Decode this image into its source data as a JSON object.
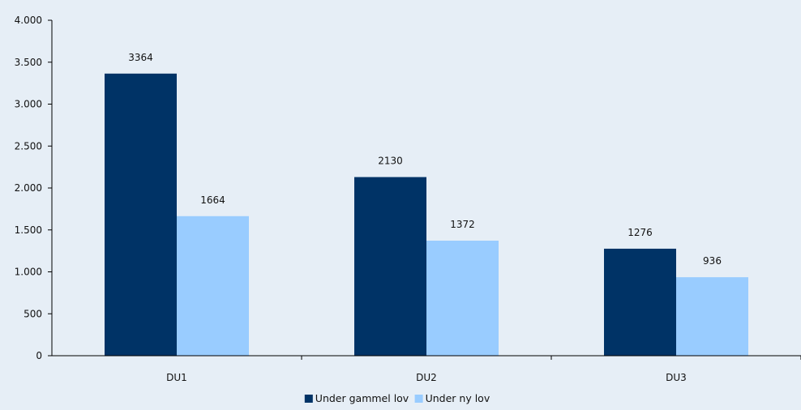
{
  "chart_data": {
    "type": "bar",
    "title": "",
    "xlabel": "",
    "ylabel": "",
    "categories": [
      "DU1",
      "DU2",
      "DU3"
    ],
    "series": [
      {
        "name": "Under gammel lov",
        "values": [
          3364,
          2130,
          1276
        ],
        "color": "#003366"
      },
      {
        "name": "Under ny lov",
        "values": [
          1664,
          1372,
          936
        ],
        "color": "#99ccff"
      }
    ],
    "ylim": [
      0,
      4000
    ],
    "yticks": [
      {
        "value": 0,
        "label": "0"
      },
      {
        "value": 500,
        "label": "500"
      },
      {
        "value": 1000,
        "label": "1.000"
      },
      {
        "value": 1500,
        "label": "1.500"
      },
      {
        "value": 2000,
        "label": "2.000"
      },
      {
        "value": 2500,
        "label": "2.500"
      },
      {
        "value": 3000,
        "label": "3.000"
      },
      {
        "value": 3500,
        "label": "3.500"
      },
      {
        "value": 4000,
        "label": "4.000"
      }
    ],
    "data_labels": [
      [
        "3364",
        "2130",
        "1276"
      ],
      [
        "1664",
        "1372",
        "936"
      ]
    ],
    "grid": false,
    "legend_position": "bottom-center",
    "background_color": "#e6eef6",
    "axis_color": "#000000"
  }
}
